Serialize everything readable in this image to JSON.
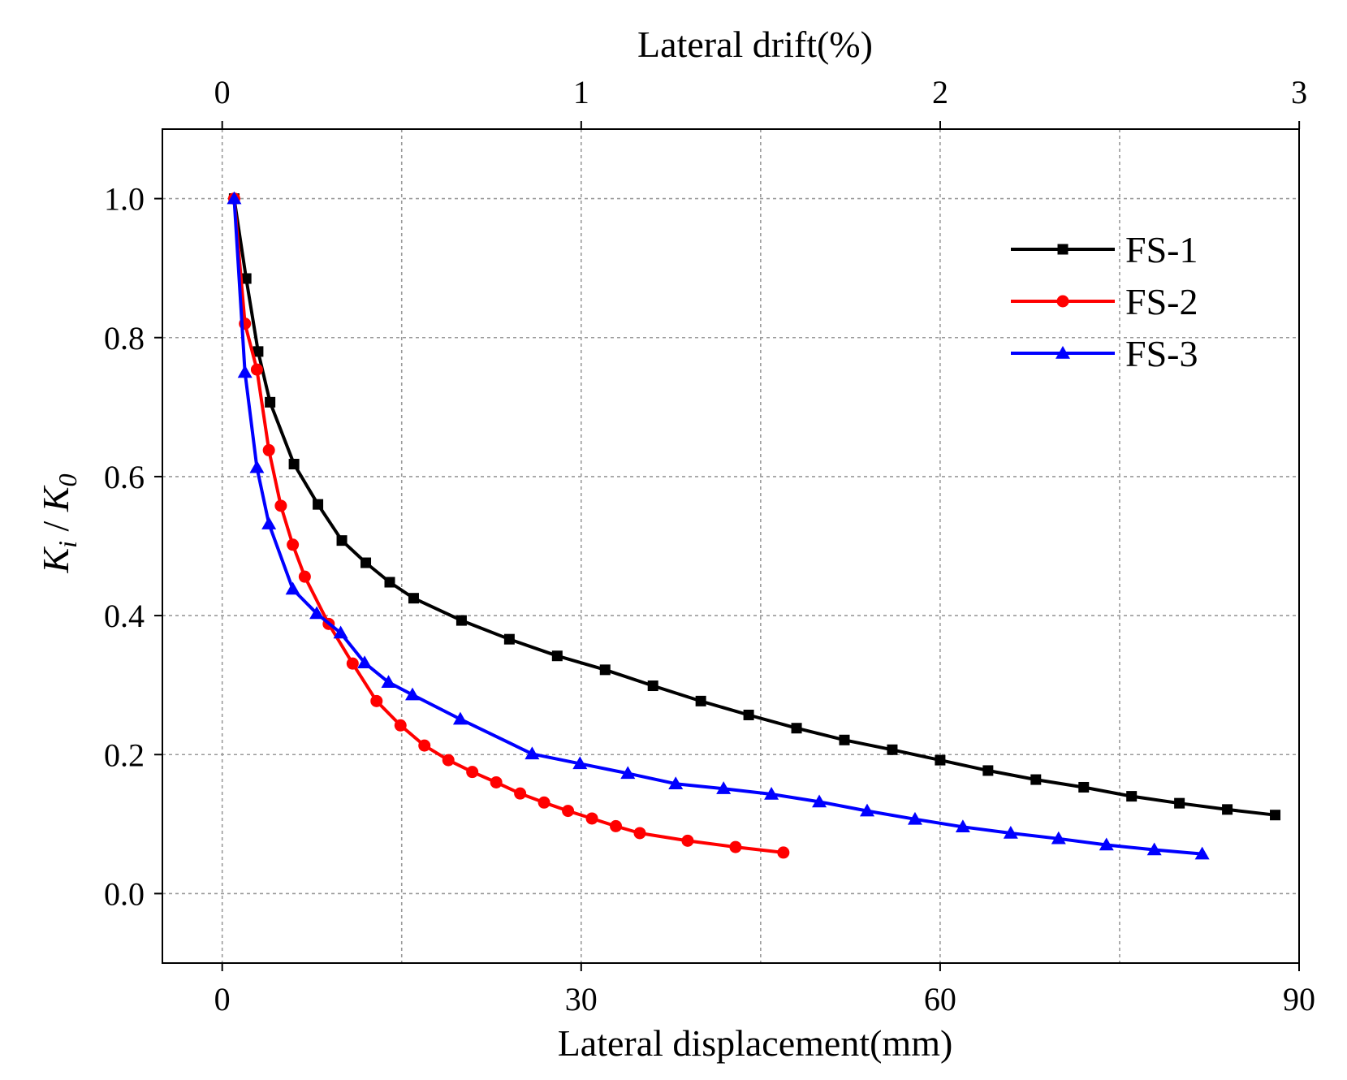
{
  "chart_data": {
    "type": "line",
    "title": "",
    "xlabel": "Lateral displacement(mm)",
    "x2label": "Lateral drift(%)",
    "ylabel": {
      "k": "K",
      "i": "i",
      "sep": " / ",
      "zero": "0"
    },
    "xlim": [
      -5,
      90
    ],
    "ylim": [
      -0.1,
      1.1
    ],
    "xticks": [
      0,
      30,
      60,
      90
    ],
    "xtick_labels": [
      "0",
      "30",
      "60",
      "90"
    ],
    "x2ticks": [
      0,
      1,
      2,
      3
    ],
    "x2tick_labels": [
      "0",
      "1",
      "2",
      "3"
    ],
    "x2_per_x": 0.03333,
    "yticks": [
      0.0,
      0.2,
      0.4,
      0.6,
      0.8,
      1.0
    ],
    "ytick_labels": [
      "0.0",
      "0.2",
      "0.4",
      "0.6",
      "0.8",
      "1.0"
    ],
    "grid": true,
    "legend_position": "top-right",
    "series": [
      {
        "name": "FS-1",
        "color": "#000000",
        "marker": "square",
        "x": [
          1.0,
          2.0,
          3.0,
          4.0,
          6.0,
          8.0,
          10.0,
          12.0,
          14.0,
          16.0,
          20.0,
          24.0,
          28.0,
          32.0,
          36.0,
          40.0,
          44.0,
          48.0,
          52.0,
          56.0,
          60.0,
          64.0,
          68.0,
          72.0,
          76.0,
          80.0,
          84.0,
          88.0
        ],
        "y": [
          1.0,
          0.885,
          0.78,
          0.707,
          0.618,
          0.56,
          0.508,
          0.476,
          0.448,
          0.425,
          0.393,
          0.366,
          0.342,
          0.322,
          0.299,
          0.277,
          0.257,
          0.238,
          0.221,
          0.207,
          0.192,
          0.177,
          0.164,
          0.153,
          0.14,
          0.13,
          0.121,
          0.113
        ]
      },
      {
        "name": "FS-2",
        "color": "#ff0000",
        "marker": "circle",
        "x": [
          1.0,
          1.9,
          2.9,
          3.9,
          4.9,
          5.9,
          6.9,
          8.9,
          10.9,
          12.9,
          14.9,
          16.9,
          18.9,
          20.9,
          22.9,
          24.9,
          26.9,
          28.9,
          30.9,
          32.9,
          34.9,
          38.9,
          42.9,
          46.9
        ],
        "y": [
          1.0,
          0.82,
          0.754,
          0.638,
          0.558,
          0.502,
          0.456,
          0.388,
          0.331,
          0.277,
          0.242,
          0.213,
          0.192,
          0.175,
          0.16,
          0.144,
          0.131,
          0.119,
          0.108,
          0.097,
          0.087,
          0.076,
          0.067,
          0.059
        ]
      },
      {
        "name": "FS-3",
        "color": "#0000ff",
        "marker": "triangle",
        "x": [
          1.0,
          1.9,
          2.9,
          3.9,
          5.9,
          7.9,
          9.9,
          11.9,
          13.9,
          15.9,
          19.9,
          25.9,
          29.9,
          33.9,
          37.9,
          41.9,
          45.9,
          49.9,
          53.9,
          57.9,
          61.9,
          65.9,
          69.9,
          73.9,
          77.9,
          81.9
        ],
        "y": [
          1.0,
          0.75,
          0.613,
          0.532,
          0.438,
          0.403,
          0.375,
          0.332,
          0.304,
          0.286,
          0.251,
          0.201,
          0.187,
          0.173,
          0.158,
          0.151,
          0.143,
          0.132,
          0.119,
          0.107,
          0.096,
          0.087,
          0.079,
          0.07,
          0.063,
          0.057
        ]
      }
    ]
  }
}
